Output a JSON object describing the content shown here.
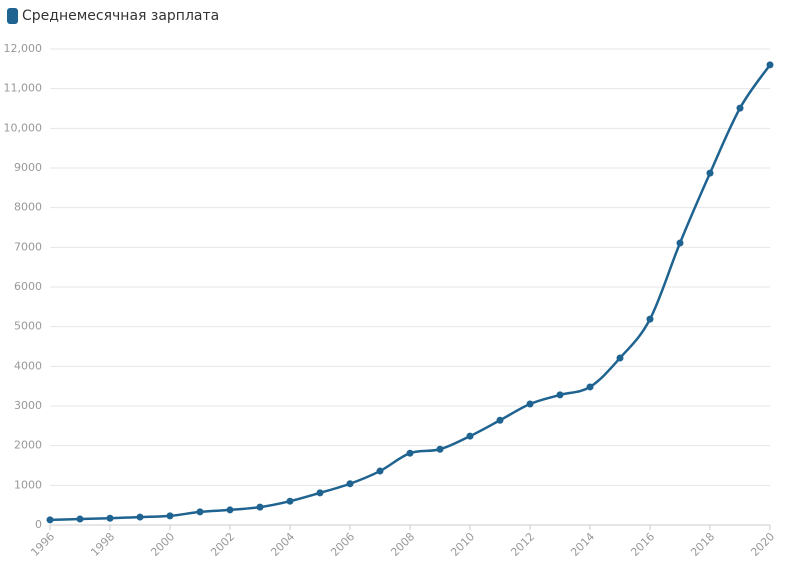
{
  "chart_data": {
    "type": "line",
    "x": [
      1996,
      1997,
      1998,
      1999,
      2000,
      2001,
      2002,
      2003,
      2004,
      2005,
      2006,
      2007,
      2008,
      2009,
      2010,
      2011,
      2012,
      2013,
      2014,
      2015,
      2016,
      2017,
      2018,
      2019,
      2020
    ],
    "series": [
      {
        "name": "Среднемесячная зарплата",
        "color": "#1f6391",
        "values": [
          130,
          150,
          170,
          200,
          230,
          330,
          380,
          450,
          600,
          810,
          1040,
          1360,
          1810,
          1910,
          2240,
          2640,
          3050,
          3280,
          3480,
          4210,
          5190,
          7110,
          8870,
          10510,
          11600
        ]
      }
    ],
    "xlim": [
      1996,
      2020
    ],
    "xticks": [
      1996,
      1998,
      2000,
      2002,
      2004,
      2006,
      2008,
      2010,
      2012,
      2014,
      2016,
      2018,
      2020
    ],
    "ylim": [
      0,
      12000
    ],
    "yticks": [
      0,
      1000,
      2000,
      3000,
      4000,
      5000,
      6000,
      7000,
      8000,
      9000,
      {
        "value": 10000,
        "label": "10,000"
      },
      {
        "value": 11000,
        "label": "11,000"
      },
      {
        "value": 12000,
        "label": "12,000"
      }
    ],
    "grid": true,
    "legend": "top-left"
  }
}
